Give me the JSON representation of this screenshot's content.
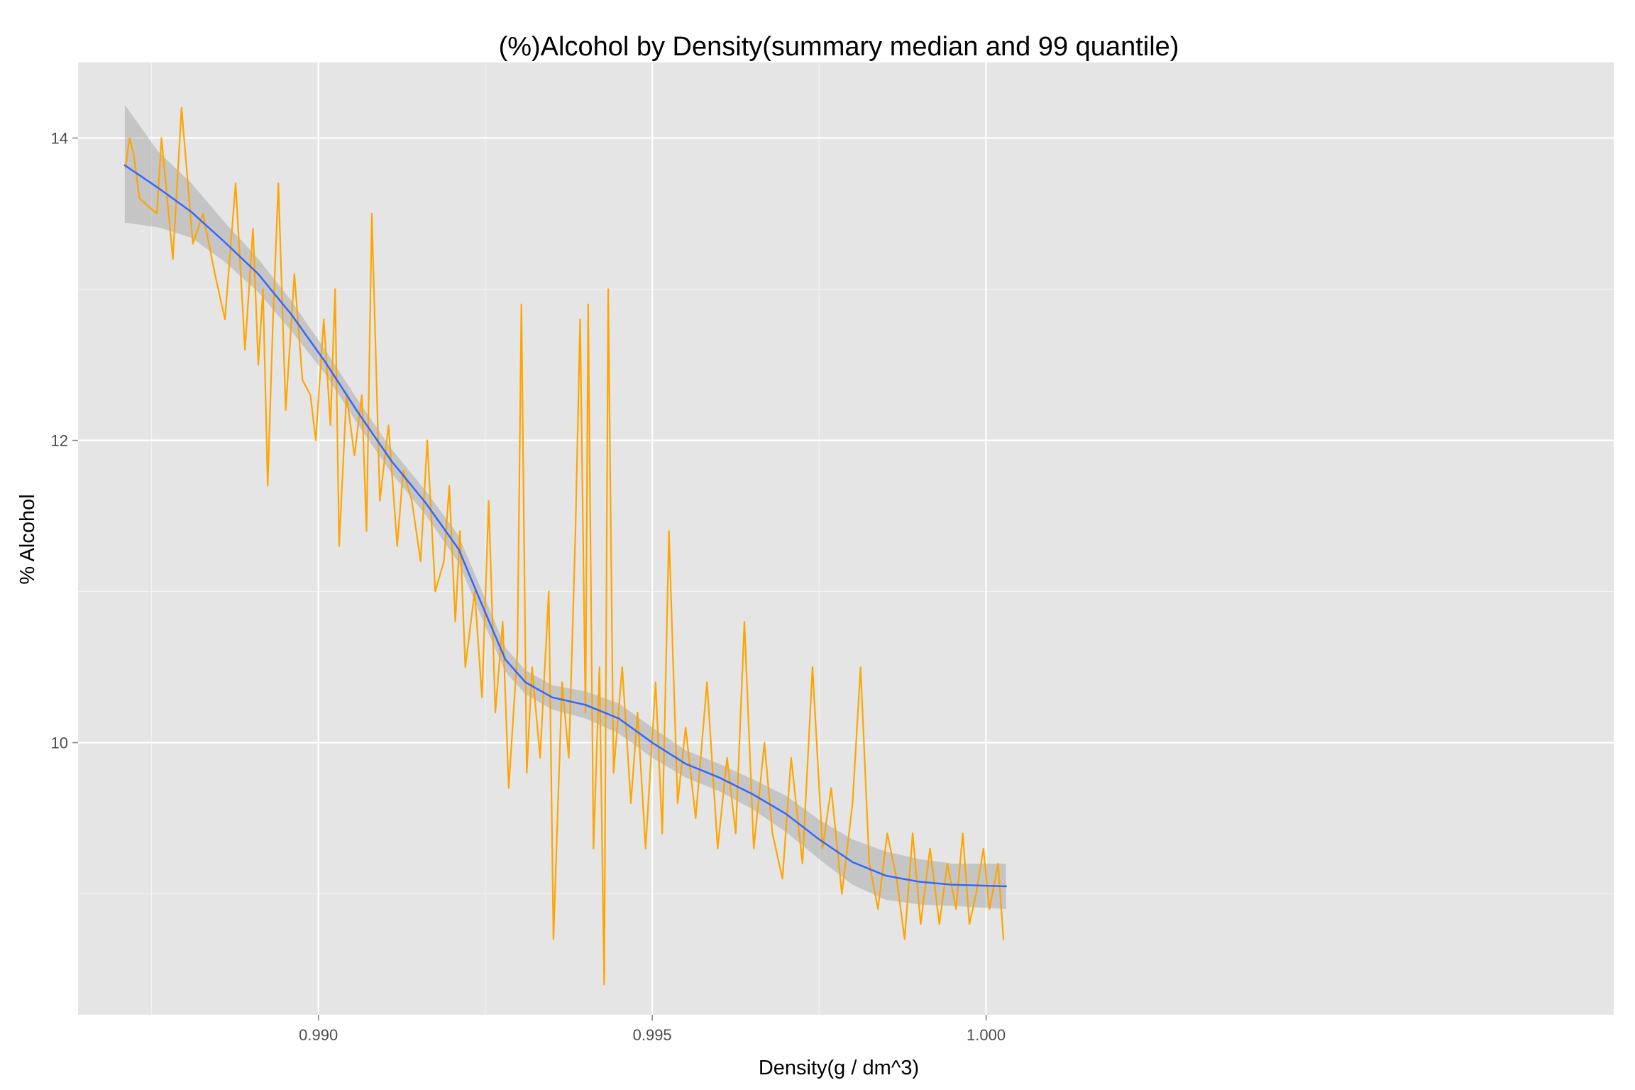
{
  "chart_data": {
    "type": "line",
    "title": "(%)Alcohol by Density(summary median and 99 quantile)",
    "xlabel": "Density(g / dm^3)",
    "ylabel": "% Alcohol",
    "xlim": [
      0.9864,
      1.0094
    ],
    "ylim": [
      8.2,
      14.5
    ],
    "x_ticks": [
      {
        "value": 0.99,
        "label": "0.990"
      },
      {
        "value": 0.995,
        "label": "0.995"
      },
      {
        "value": 1.0,
        "label": "1.000"
      }
    ],
    "y_ticks": [
      {
        "value": 10,
        "label": "10"
      },
      {
        "value": 12,
        "label": "12"
      },
      {
        "value": 14,
        "label": "14"
      }
    ],
    "minor_x_ticks": [
      0.9875,
      0.9925,
      0.9975
    ],
    "minor_y_ticks": [
      9,
      11,
      13
    ],
    "grid": true,
    "panel_background": "#e5e5e5",
    "colors": {
      "raw": "#ffa500",
      "smooth": "#3366ff",
      "ribbon": "#999999"
    },
    "raw_points": [
      [
        0.98711,
        13.8
      ],
      [
        0.98717,
        14.0
      ],
      [
        0.98723,
        13.9
      ],
      [
        0.98732,
        13.6
      ],
      [
        0.98758,
        13.5
      ],
      [
        0.98765,
        14.0
      ],
      [
        0.98782,
        13.2
      ],
      [
        0.98795,
        14.2
      ],
      [
        0.98812,
        13.3
      ],
      [
        0.98827,
        13.5
      ],
      [
        0.98845,
        13.1
      ],
      [
        0.9886,
        12.8
      ],
      [
        0.98876,
        13.7
      ],
      [
        0.9889,
        12.6
      ],
      [
        0.98902,
        13.4
      ],
      [
        0.9891,
        12.5
      ],
      [
        0.98917,
        13.0
      ],
      [
        0.98924,
        11.7
      ],
      [
        0.98932,
        12.8
      ],
      [
        0.9894,
        13.7
      ],
      [
        0.98951,
        12.2
      ],
      [
        0.98964,
        13.1
      ],
      [
        0.98976,
        12.4
      ],
      [
        0.98988,
        12.3
      ],
      [
        0.98996,
        12.0
      ],
      [
        0.99008,
        12.8
      ],
      [
        0.99018,
        12.1
      ],
      [
        0.99025,
        13.0
      ],
      [
        0.99031,
        11.3
      ],
      [
        0.99042,
        12.3
      ],
      [
        0.99054,
        11.9
      ],
      [
        0.99065,
        12.3
      ],
      [
        0.99072,
        11.4
      ],
      [
        0.9908,
        13.5
      ],
      [
        0.99092,
        11.6
      ],
      [
        0.99105,
        12.1
      ],
      [
        0.99118,
        11.3
      ],
      [
        0.99127,
        11.8
      ],
      [
        0.9914,
        11.6
      ],
      [
        0.99153,
        11.2
      ],
      [
        0.99163,
        12.0
      ],
      [
        0.99175,
        11.0
      ],
      [
        0.99188,
        11.2
      ],
      [
        0.99196,
        11.7
      ],
      [
        0.99205,
        10.8
      ],
      [
        0.99212,
        11.4
      ],
      [
        0.9922,
        10.5
      ],
      [
        0.99234,
        11.0
      ],
      [
        0.99245,
        10.3
      ],
      [
        0.99255,
        11.6
      ],
      [
        0.99265,
        10.2
      ],
      [
        0.99276,
        10.8
      ],
      [
        0.99285,
        9.7
      ],
      [
        0.99298,
        10.6
      ],
      [
        0.99304,
        12.9
      ],
      [
        0.99312,
        9.8
      ],
      [
        0.9932,
        10.5
      ],
      [
        0.99332,
        9.9
      ],
      [
        0.99345,
        11.0
      ],
      [
        0.99352,
        8.7
      ],
      [
        0.99365,
        10.4
      ],
      [
        0.99375,
        9.9
      ],
      [
        0.99385,
        11.4
      ],
      [
        0.99392,
        12.8
      ],
      [
        0.994,
        10.2
      ],
      [
        0.99404,
        12.9
      ],
      [
        0.99412,
        9.3
      ],
      [
        0.99421,
        10.5
      ],
      [
        0.99428,
        8.4
      ],
      [
        0.99434,
        13.0
      ],
      [
        0.99442,
        9.8
      ],
      [
        0.99455,
        10.5
      ],
      [
        0.99468,
        9.6
      ],
      [
        0.99478,
        10.2
      ],
      [
        0.9949,
        9.3
      ],
      [
        0.99505,
        10.4
      ],
      [
        0.99515,
        9.4
      ],
      [
        0.99525,
        11.4
      ],
      [
        0.99538,
        9.6
      ],
      [
        0.9955,
        10.1
      ],
      [
        0.99565,
        9.5
      ],
      [
        0.99582,
        10.4
      ],
      [
        0.99598,
        9.3
      ],
      [
        0.99612,
        9.9
      ],
      [
        0.99625,
        9.4
      ],
      [
        0.99638,
        10.8
      ],
      [
        0.99652,
        9.3
      ],
      [
        0.99668,
        10.0
      ],
      [
        0.9968,
        9.4
      ],
      [
        0.99695,
        9.1
      ],
      [
        0.99708,
        9.9
      ],
      [
        0.99725,
        9.2
      ],
      [
        0.9974,
        10.5
      ],
      [
        0.99755,
        9.3
      ],
      [
        0.99768,
        9.7
      ],
      [
        0.99784,
        9.0
      ],
      [
        0.998,
        9.6
      ],
      [
        0.99812,
        10.5
      ],
      [
        0.99825,
        9.2
      ],
      [
        0.99838,
        8.9
      ],
      [
        0.99852,
        9.4
      ],
      [
        0.99866,
        9.1
      ],
      [
        0.99878,
        8.7
      ],
      [
        0.9989,
        9.4
      ],
      [
        0.99902,
        8.8
      ],
      [
        0.99916,
        9.3
      ],
      [
        0.9993,
        8.8
      ],
      [
        0.99942,
        9.2
      ],
      [
        0.99955,
        8.9
      ],
      [
        0.99965,
        9.4
      ],
      [
        0.99975,
        8.8
      ],
      [
        0.99985,
        9.0
      ],
      [
        0.99996,
        9.3
      ],
      [
        1.00005,
        8.9
      ],
      [
        1.00018,
        9.2
      ],
      [
        1.00026,
        8.7
      ]
    ],
    "smooth_points": [
      [
        0.9871,
        13.82
      ],
      [
        0.9876,
        13.67
      ],
      [
        0.9881,
        13.51
      ],
      [
        0.9886,
        13.31
      ],
      [
        0.9891,
        13.1
      ],
      [
        0.9896,
        12.83
      ],
      [
        0.9901,
        12.52
      ],
      [
        0.9906,
        12.18
      ],
      [
        0.9911,
        11.86
      ],
      [
        0.9916,
        11.59
      ],
      [
        0.9921,
        11.28
      ],
      [
        0.9925,
        10.86
      ],
      [
        0.9928,
        10.55
      ],
      [
        0.9931,
        10.4
      ],
      [
        0.9935,
        10.3
      ],
      [
        0.994,
        10.25
      ],
      [
        0.9945,
        10.16
      ],
      [
        0.995,
        10.0
      ],
      [
        0.9955,
        9.86
      ],
      [
        0.996,
        9.77
      ],
      [
        0.9965,
        9.66
      ],
      [
        0.997,
        9.53
      ],
      [
        0.9975,
        9.36
      ],
      [
        0.998,
        9.21
      ],
      [
        0.9985,
        9.12
      ],
      [
        0.999,
        9.08
      ],
      [
        0.9995,
        9.06
      ],
      [
        1.0003,
        9.05
      ]
    ],
    "ribbon": [
      [
        0.9871,
        14.22,
        13.44
      ],
      [
        0.9876,
        13.91,
        13.41
      ],
      [
        0.9881,
        13.7,
        13.34
      ],
      [
        0.9886,
        13.44,
        13.18
      ],
      [
        0.9891,
        13.2,
        12.98
      ],
      [
        0.9896,
        12.92,
        12.72
      ],
      [
        0.9901,
        12.6,
        12.44
      ],
      [
        0.9906,
        12.26,
        12.1
      ],
      [
        0.9911,
        11.94,
        11.78
      ],
      [
        0.9916,
        11.67,
        11.51
      ],
      [
        0.9921,
        11.37,
        11.19
      ],
      [
        0.9925,
        10.95,
        10.77
      ],
      [
        0.9928,
        10.63,
        10.47
      ],
      [
        0.9931,
        10.48,
        10.32
      ],
      [
        0.9935,
        10.38,
        10.22
      ],
      [
        0.994,
        10.34,
        10.16
      ],
      [
        0.9945,
        10.26,
        10.06
      ],
      [
        0.995,
        10.1,
        9.9
      ],
      [
        0.9955,
        9.95,
        9.77
      ],
      [
        0.996,
        9.86,
        9.68
      ],
      [
        0.9965,
        9.76,
        9.56
      ],
      [
        0.997,
        9.65,
        9.41
      ],
      [
        0.9975,
        9.49,
        9.23
      ],
      [
        0.998,
        9.36,
        9.06
      ],
      [
        0.9985,
        9.28,
        8.96
      ],
      [
        0.999,
        9.23,
        8.93
      ],
      [
        0.9995,
        9.2,
        8.92
      ],
      [
        1.0003,
        9.2,
        8.9
      ]
    ]
  }
}
